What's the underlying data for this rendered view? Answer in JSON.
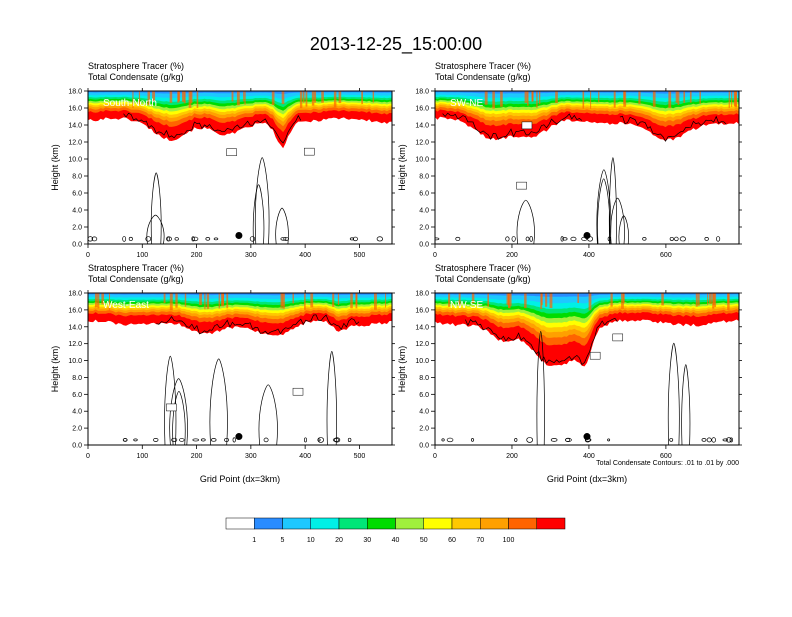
{
  "title": "2013-12-25_15:00:00",
  "note": "Total Condensate Contours: .01 to .01 by .000",
  "panels": [
    {
      "id": "south-north",
      "label": "South-North",
      "header_line1": "Stratosphere Tracer   (%)",
      "header_line2": "Total Condensate   (g/kg)",
      "xmax": 560,
      "xticks": [
        "0",
        "100",
        "200",
        "300",
        "400",
        "500"
      ],
      "xtick_values": [
        0,
        100,
        200,
        300,
        400,
        500
      ],
      "marker_x": 278,
      "show_xlabel": false
    },
    {
      "id": "sw-ne",
      "label": "SW-NE",
      "header_line1": "Stratosphere Tracer   (%)",
      "header_line2": "Total Condensate   (g/kg)",
      "xmax": 790,
      "xticks": [
        "0",
        "200",
        "400",
        "600"
      ],
      "xtick_values": [
        0,
        200,
        400,
        600
      ],
      "marker_x": 395,
      "show_xlabel": false
    },
    {
      "id": "west-east",
      "label": "West-East",
      "header_line1": "Stratosphere Tracer   (%)",
      "header_line2": "Total Condensate   (g/kg)",
      "xmax": 560,
      "xticks": [
        "0",
        "100",
        "200",
        "300",
        "400",
        "500"
      ],
      "xtick_values": [
        0,
        100,
        200,
        300,
        400,
        500
      ],
      "marker_x": 278,
      "show_xlabel": true
    },
    {
      "id": "nw-se",
      "label": "NW-SE",
      "header_line1": "Stratosphere Tracer   (%)",
      "header_line2": "Total Condensate   (g/kg)",
      "xmax": 790,
      "xticks": [
        "0",
        "200",
        "400",
        "600"
      ],
      "xtick_values": [
        0,
        200,
        400,
        600
      ],
      "marker_x": 395,
      "show_xlabel": true
    }
  ],
  "y_axis": {
    "label": "Height (km)",
    "ticks": [
      "0.0",
      "2.0",
      "4.0",
      "6.0",
      "8.0",
      "10.0",
      "12.0",
      "14.0",
      "16.0",
      "18.0"
    ],
    "values": [
      0,
      2,
      4,
      6,
      8,
      10,
      12,
      14,
      16,
      18
    ],
    "ylim": [
      0,
      18
    ]
  },
  "x_axis_label": "Grid Point (dx=3km)",
  "colorbar": {
    "labels": [
      "1",
      "5",
      "10",
      "20",
      "30",
      "40",
      "50",
      "60",
      "70",
      "100"
    ],
    "colors": [
      "#ffffff",
      "#2a8cff",
      "#1ec8ff",
      "#00f0e6",
      "#00e678",
      "#00dc00",
      "#a0f03c",
      "#ffff00",
      "#ffc800",
      "#ffa000",
      "#ff6400",
      "#ff0000"
    ]
  },
  "chart_data": [
    {
      "type": "heatmap",
      "title": "South-North",
      "xlabel": "",
      "ylabel": "Height (km)",
      "xlim": [
        0,
        560
      ],
      "ylim": [
        0,
        18
      ],
      "xticks": [
        0,
        100,
        200,
        300,
        400,
        500
      ],
      "yticks": [
        0,
        2,
        4,
        6,
        8,
        10,
        12,
        14,
        16,
        18
      ],
      "fields": [
        "Stratosphere Tracer (%)",
        "Total Condensate (g/kg)"
      ],
      "tracer_top_km": 18,
      "tracer_base_km_typical": 14.5,
      "tracer_base_km_min": 11.5,
      "condensate_contour_g_per_kg": 0.01,
      "marker_point": [
        278,
        1.0
      ]
    },
    {
      "type": "heatmap",
      "title": "SW-NE",
      "xlabel": "",
      "ylabel": "Height (km)",
      "xlim": [
        0,
        790
      ],
      "ylim": [
        0,
        18
      ],
      "xticks": [
        0,
        200,
        400,
        600
      ],
      "yticks": [
        0,
        2,
        4,
        6,
        8,
        10,
        12,
        14,
        16,
        18
      ],
      "fields": [
        "Stratosphere Tracer (%)",
        "Total Condensate (g/kg)"
      ],
      "tracer_top_km": 18,
      "tracer_base_km_typical": 14.5,
      "tracer_base_km_min": 12.0,
      "condensate_contour_g_per_kg": 0.01,
      "marker_point": [
        395,
        1.0
      ]
    },
    {
      "type": "heatmap",
      "title": "West-East",
      "xlabel": "Grid Point (dx=3km)",
      "ylabel": "Height (km)",
      "xlim": [
        0,
        560
      ],
      "ylim": [
        0,
        18
      ],
      "xticks": [
        0,
        100,
        200,
        300,
        400,
        500
      ],
      "yticks": [
        0,
        2,
        4,
        6,
        8,
        10,
        12,
        14,
        16,
        18
      ],
      "fields": [
        "Stratosphere Tracer (%)",
        "Total Condensate (g/kg)"
      ],
      "tracer_top_km": 18,
      "tracer_base_km_typical": 14.5,
      "tracer_base_km_min": 12.5,
      "condensate_contour_g_per_kg": 0.01,
      "marker_point": [
        278,
        1.0
      ]
    },
    {
      "type": "heatmap",
      "title": "NW-SE",
      "xlabel": "Grid Point (dx=3km)",
      "ylabel": "Height (km)",
      "xlim": [
        0,
        790
      ],
      "ylim": [
        0,
        18
      ],
      "xticks": [
        0,
        200,
        400,
        600
      ],
      "yticks": [
        0,
        2,
        4,
        6,
        8,
        10,
        12,
        14,
        16,
        18
      ],
      "fields": [
        "Stratosphere Tracer (%)",
        "Total Condensate (g/kg)"
      ],
      "tracer_top_km": 18,
      "tracer_base_km_typical": 14.5,
      "tracer_base_km_min": 10.5,
      "condensate_contour_g_per_kg": 0.01,
      "marker_point": [
        395,
        1.0
      ]
    }
  ]
}
